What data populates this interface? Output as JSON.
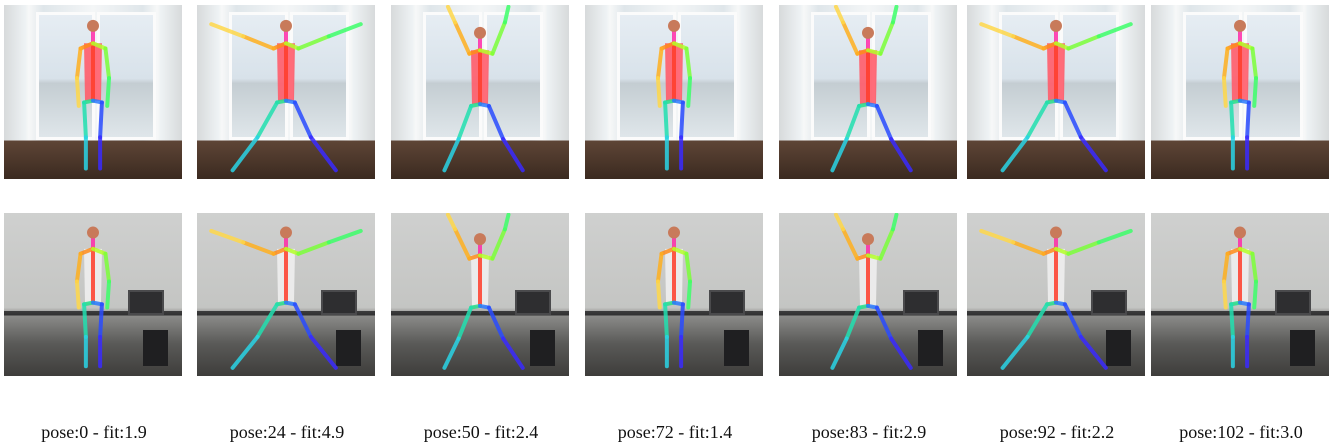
{
  "colors": {
    "mismatch_frame": "#ff0000",
    "match_frame": "#00ee00"
  },
  "columns": [
    {
      "caption": "pose:0 - fit:1.9",
      "ref_pose": "stand",
      "user_pose": "stand",
      "highlight": "none"
    },
    {
      "caption": "pose:24 - fit:4.9",
      "ref_pose": "spread",
      "user_pose": "spread",
      "highlight": "red"
    },
    {
      "caption": "pose:50 - fit:2.4",
      "ref_pose": "jump",
      "user_pose": "jump",
      "highlight": "none"
    },
    {
      "caption": "pose:72 - fit:1.4",
      "ref_pose": "stand",
      "user_pose": "stand",
      "highlight": "green"
    },
    {
      "caption": "pose:83 - fit:2.9",
      "ref_pose": "jump",
      "user_pose": "jump",
      "highlight": "none"
    },
    {
      "caption": "pose:92 - fit:2.2",
      "ref_pose": "spread",
      "user_pose": "spread",
      "highlight": "none"
    },
    {
      "caption": "pose:102 - fit:3.0",
      "ref_pose": "stand",
      "user_pose": "stand",
      "highlight": "none"
    }
  ]
}
